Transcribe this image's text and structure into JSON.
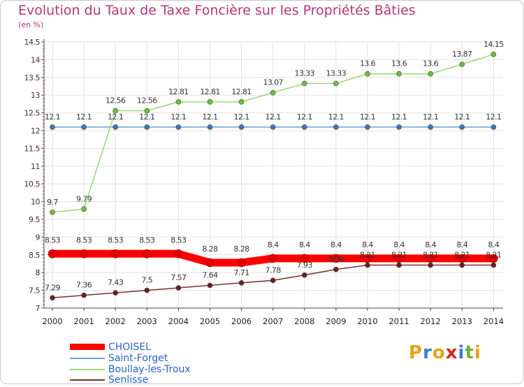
{
  "header": {
    "title": "Evolution du Taux de Taxe Foncière sur les Propriétés Bâties",
    "unit": "(en %)"
  },
  "logo": {
    "text": "Proxiti",
    "colors": [
      "#e8a21a",
      "#3a7fd0",
      "#e8a21a",
      "#d4281e",
      "#3a7fd0",
      "#6cb43a",
      "#e8a21a"
    ]
  },
  "chart_data": {
    "type": "line",
    "x": [
      "2000",
      "2001",
      "2002",
      "2003",
      "2004",
      "2005",
      "2006",
      "2007",
      "2008",
      "2009",
      "2010",
      "2011",
      "2012",
      "2013",
      "2014"
    ],
    "ylim": [
      7,
      14.5
    ],
    "yticks": [
      "7",
      "7.5",
      "8",
      "8.5",
      "9",
      "9.5",
      "10",
      "10.5",
      "11",
      "11.5",
      "12",
      "12.5",
      "13",
      "13.5",
      "14",
      "14.5"
    ],
    "grid": true,
    "legend_position": "bottom-left",
    "series": [
      {
        "name": "CHOISEL",
        "color": "#ff0000",
        "marker": "#e00000",
        "width": 11,
        "values": [
          8.53,
          8.53,
          8.53,
          8.53,
          8.53,
          8.28,
          8.28,
          8.4,
          8.4,
          8.4,
          8.4,
          8.4,
          8.4,
          8.4,
          8.4
        ],
        "labels": [
          "8.53",
          "8.53",
          "8.53",
          "8.53",
          "8.53",
          "8.28",
          "8.28",
          "8.4",
          "8.4",
          "8.4",
          "8.4",
          "8.4",
          "8.4",
          "8.4",
          "8.4"
        ]
      },
      {
        "name": "Saint-Forget",
        "color": "#6aa0d0",
        "marker": "#3a78bc",
        "width": 1.5,
        "values": [
          12.1,
          12.1,
          12.1,
          12.1,
          12.1,
          12.1,
          12.1,
          12.1,
          12.1,
          12.1,
          12.1,
          12.1,
          12.1,
          12.1,
          12.1
        ],
        "labels": [
          "12.1",
          "12.1",
          "12.1",
          "12.1",
          "12.1",
          "12.1",
          "12.1",
          "12.1",
          "12.1",
          "12.1",
          "12.1",
          "12.1",
          "12.1",
          "12.1",
          "12.1"
        ]
      },
      {
        "name": "Boullay-les-Troux",
        "color": "#9ad67a",
        "marker": "#6cc03a",
        "width": 1.5,
        "values": [
          9.7,
          9.79,
          12.56,
          12.56,
          12.81,
          12.81,
          12.81,
          13.07,
          13.33,
          13.33,
          13.6,
          13.6,
          13.6,
          13.87,
          14.15
        ],
        "labels": [
          "9.7",
          "9.79",
          "12.56",
          "12.56",
          "12.81",
          "12.81",
          "12.81",
          "13.07",
          "13.33",
          "13.33",
          "13.6",
          "13.6",
          "13.6",
          "13.87",
          "14.15"
        ]
      },
      {
        "name": "Senlisse",
        "color": "#7a3030",
        "marker": "#6a2020",
        "width": 1.5,
        "values": [
          7.29,
          7.36,
          7.43,
          7.5,
          7.57,
          7.64,
          7.71,
          7.78,
          7.93,
          8.09,
          8.21,
          8.21,
          8.21,
          8.21,
          8.21
        ],
        "labels": [
          "7.29",
          "7.36",
          "7.43",
          "7.5",
          "7.57",
          "7.64",
          "7.71",
          "7.78",
          "7.93",
          "8.09",
          "8.21",
          "8.21",
          "8.21",
          "8.21",
          "8.21"
        ]
      }
    ]
  }
}
